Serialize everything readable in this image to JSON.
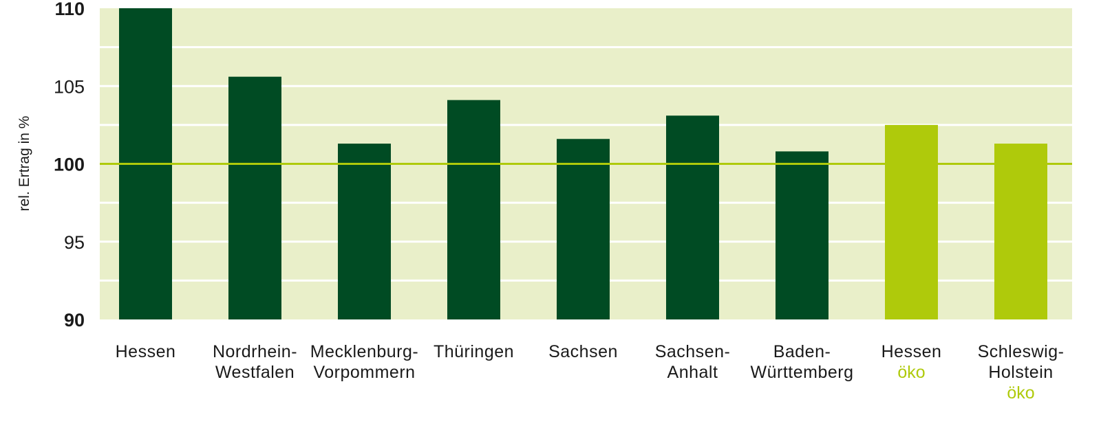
{
  "chart_data": {
    "type": "bar",
    "title": "",
    "xlabel": "",
    "ylabel": "rel. Ertrag in %",
    "ylim": [
      90,
      110
    ],
    "yticks": [
      90,
      95,
      100,
      105,
      110
    ],
    "bold_ticks": [
      90,
      100,
      110
    ],
    "reference_line": 100,
    "grid": true,
    "categories": [
      {
        "lines": [
          "Hessen"
        ],
        "suffix": ""
      },
      {
        "lines": [
          "Nordrhein-",
          "Westfalen"
        ],
        "suffix": ""
      },
      {
        "lines": [
          "Mecklenburg-",
          "Vorpommern"
        ],
        "suffix": ""
      },
      {
        "lines": [
          "Thüringen"
        ],
        "suffix": ""
      },
      {
        "lines": [
          "Sachsen"
        ],
        "suffix": ""
      },
      {
        "lines": [
          "Sachsen-",
          "Anhalt"
        ],
        "suffix": ""
      },
      {
        "lines": [
          "Baden-",
          "Württemberg"
        ],
        "suffix": ""
      },
      {
        "lines": [
          "Hessen"
        ],
        "suffix": "öko"
      },
      {
        "lines": [
          "Schleswig-",
          "Holstein"
        ],
        "suffix": "öko"
      }
    ],
    "values": [
      110,
      105.6,
      101.3,
      104.1,
      101.6,
      103.1,
      100.8,
      102.5,
      101.3
    ],
    "organic": [
      false,
      false,
      false,
      false,
      false,
      false,
      false,
      true,
      true
    ],
    "colors": {
      "conventional": "#004b23",
      "organic": "#afca0b",
      "background": "#e9efc9",
      "reference": "#afca0b",
      "grid": "#ffffff",
      "text": "#1a1a1a"
    }
  }
}
